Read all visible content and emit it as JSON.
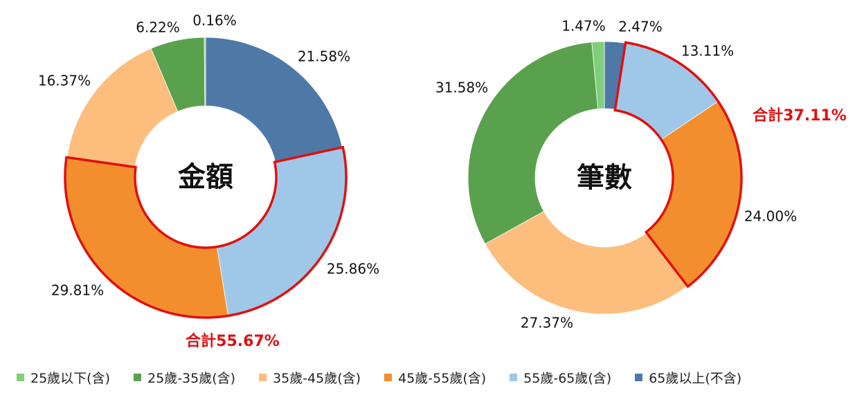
{
  "legend": [
    {
      "label": "25歲以下(含)",
      "color": "#7fce7a"
    },
    {
      "label": "25歲-35歲(含)",
      "color": "#5aa14e"
    },
    {
      "label": "35歲-45歲(含)",
      "color": "#fcbd7d"
    },
    {
      "label": "45歲-55歲(含)",
      "color": "#f28e2e"
    },
    {
      "label": "55歲-65歲(含)",
      "color": "#9fc8e8"
    },
    {
      "label": "65歲以上(不含)",
      "color": "#4e79a7"
    }
  ],
  "highlight_color": "#e01010",
  "chart_data": [
    {
      "type": "pie",
      "center_label": "金額",
      "total_label": "合計55.67%",
      "categories": [
        "25歲以下(含)",
        "25歲-35歲(含)",
        "35歲-45歲(含)",
        "45歲-55歲(含)",
        "55歲-65歲(含)",
        "65歲以上(不含)"
      ],
      "values": [
        0.16,
        6.22,
        16.37,
        29.81,
        25.86,
        21.58
      ],
      "data_labels": [
        "0.16%",
        "6.22%",
        "16.37%",
        "29.81%",
        "25.86%",
        "21.58%"
      ],
      "highlighted": [
        "45歲-55歲(含)",
        "55歲-65歲(含)"
      ]
    },
    {
      "type": "pie",
      "center_label": "筆數",
      "total_label": "合計37.11%",
      "categories": [
        "25歲以下(含)",
        "25歲-35歲(含)",
        "35歲-45歲(含)",
        "45歲-55歲(含)",
        "55歲-65歲(含)",
        "65歲以上(不含)"
      ],
      "values": [
        1.47,
        31.58,
        27.37,
        24.0,
        13.11,
        2.47
      ],
      "data_labels": [
        "1.47%",
        "31.58%",
        "27.37%",
        "24.00%",
        "13.11%",
        "2.47%"
      ],
      "highlighted": [
        "45歲-55歲(含)",
        "55歲-65歲(含)"
      ]
    }
  ]
}
